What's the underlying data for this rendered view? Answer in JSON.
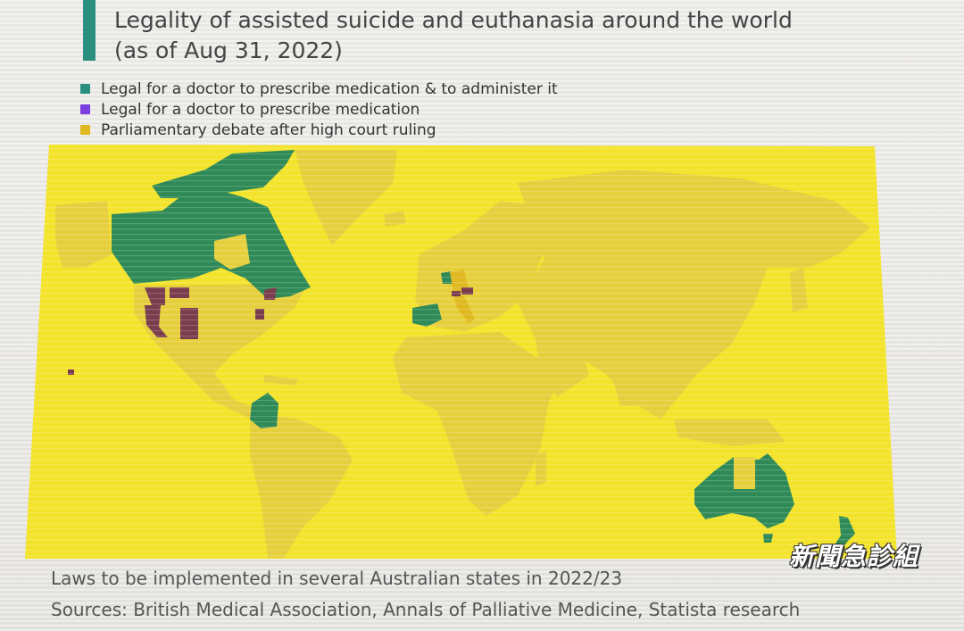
{
  "title_line1": "Legality of assisted suicide and euthanasia around the world",
  "title_line2": "(as of Aug 31, 2022)",
  "colors": {
    "accent": "#2a8f7e",
    "doctor_prescribe_administer": "#2f8a57",
    "doctor_prescribe_only": "#7a3d4e",
    "parliamentary_debate": "#e0b81f",
    "ocean": "#f3e32b",
    "land": "#e8d13a",
    "legend_green": "#2a8f7e",
    "legend_purple": "#7b3fe0",
    "legend_yellow": "#e0b81f"
  },
  "legend": [
    {
      "label": "Legal for a doctor to prescribe medication & to administer it",
      "color_key": "legend_green"
    },
    {
      "label": "Legal for a doctor to prescribe medication",
      "color_key": "legend_purple"
    },
    {
      "label": "Parliamentary debate after high court ruling",
      "color_key": "legend_yellow"
    }
  ],
  "regions": {
    "green": [
      "Canada",
      "Colombia",
      "Spain",
      "Netherlands",
      "Belgium",
      "Luxembourg",
      "Australia",
      "New Zealand"
    ],
    "purple": [
      "Switzerland",
      "Austria",
      "US states (West)",
      "US states (East)",
      "Hawaii"
    ],
    "yellow": [
      "Italy",
      "Germany"
    ]
  },
  "footnote": "Laws to be implemented in several Australian states in 2022/23",
  "sources": "Sources: British Medical Association, Annals of Palliative Medicine, Statista research",
  "watermark": "新聞急診組"
}
